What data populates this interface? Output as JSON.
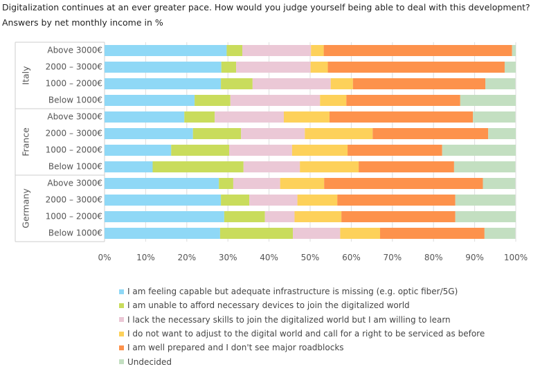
{
  "title": "Digitalization continues at an ever greater pace. How would you judge yourself being able to deal with this development?",
  "subtitle": "Answers by net monthly income in %",
  "chart_data": {
    "type": "bar",
    "orientation": "horizontal",
    "stacked": true,
    "title": "Digitalization continues at an ever greater pace. How would you judge yourself being able to deal with this development?",
    "subtitle": "Answers by net monthly income in %",
    "groups": [
      {
        "name": "Italy",
        "categories": [
          "Above 3000€",
          "2000 – 3000€",
          "1000 – 2000€",
          "Below 1000€"
        ]
      },
      {
        "name": "France",
        "categories": [
          "Above 3000€",
          "2000 – 3000€",
          "1000 – 2000€",
          "Below 1000€"
        ]
      },
      {
        "name": "Germany",
        "categories": [
          "Above 3000€",
          "2000 – 3000€",
          "1000 – 2000€",
          "Below 1000€"
        ]
      }
    ],
    "series": [
      {
        "name": "I am feeling capable but adequate infrastructure is missing (e.g. optic fiber/5G)",
        "color": "#8fd8f6",
        "values": [
          29.7,
          28.4,
          28.3,
          21.9,
          19.4,
          21.5,
          16.2,
          11.7,
          27.8,
          28.3,
          29.1,
          28.1
        ]
      },
      {
        "name": "I am unable to afford necessary devices to join the digitalized world",
        "color": "#c9dc5c",
        "values": [
          3.8,
          3.6,
          7.7,
          8.7,
          7.4,
          11.7,
          14.1,
          22.1,
          3.5,
          6.9,
          9.9,
          17.7
        ]
      },
      {
        "name": "I lack the necessary skills to join the digitalized world but I am willing to learn",
        "color": "#ebc8d6",
        "values": [
          16.7,
          18.1,
          19.0,
          21.8,
          16.8,
          15.5,
          15.3,
          13.7,
          11.4,
          11.7,
          7.2,
          11.5
        ]
      },
      {
        "name": "I do not want to adjust to the digital world and call for a right to be serviced as before",
        "color": "#fdd15a",
        "values": [
          3.1,
          4.2,
          5.4,
          6.4,
          11.1,
          16.5,
          13.5,
          14.3,
          10.7,
          9.7,
          11.4,
          9.7
        ]
      },
      {
        "name": "I am well prepared and I don't see major roadblocks",
        "color": "#fd924c",
        "values": [
          45.8,
          43.0,
          32.2,
          27.7,
          34.9,
          28.1,
          23.0,
          23.2,
          38.6,
          28.7,
          27.7,
          25.4
        ]
      },
      {
        "name": "Undecided",
        "color": "#c3dfc1",
        "values": [
          0.9,
          2.7,
          7.3,
          13.5,
          10.3,
          6.7,
          17.9,
          14.9,
          7.9,
          14.6,
          14.7,
          7.5
        ]
      }
    ],
    "xlim": [
      0,
      100
    ],
    "xticks": [
      "0%",
      "10%",
      "20%",
      "30%",
      "40%",
      "50%",
      "60%",
      "70%",
      "80%",
      "90%",
      "100%"
    ],
    "grid": true,
    "legend_position": "bottom"
  }
}
